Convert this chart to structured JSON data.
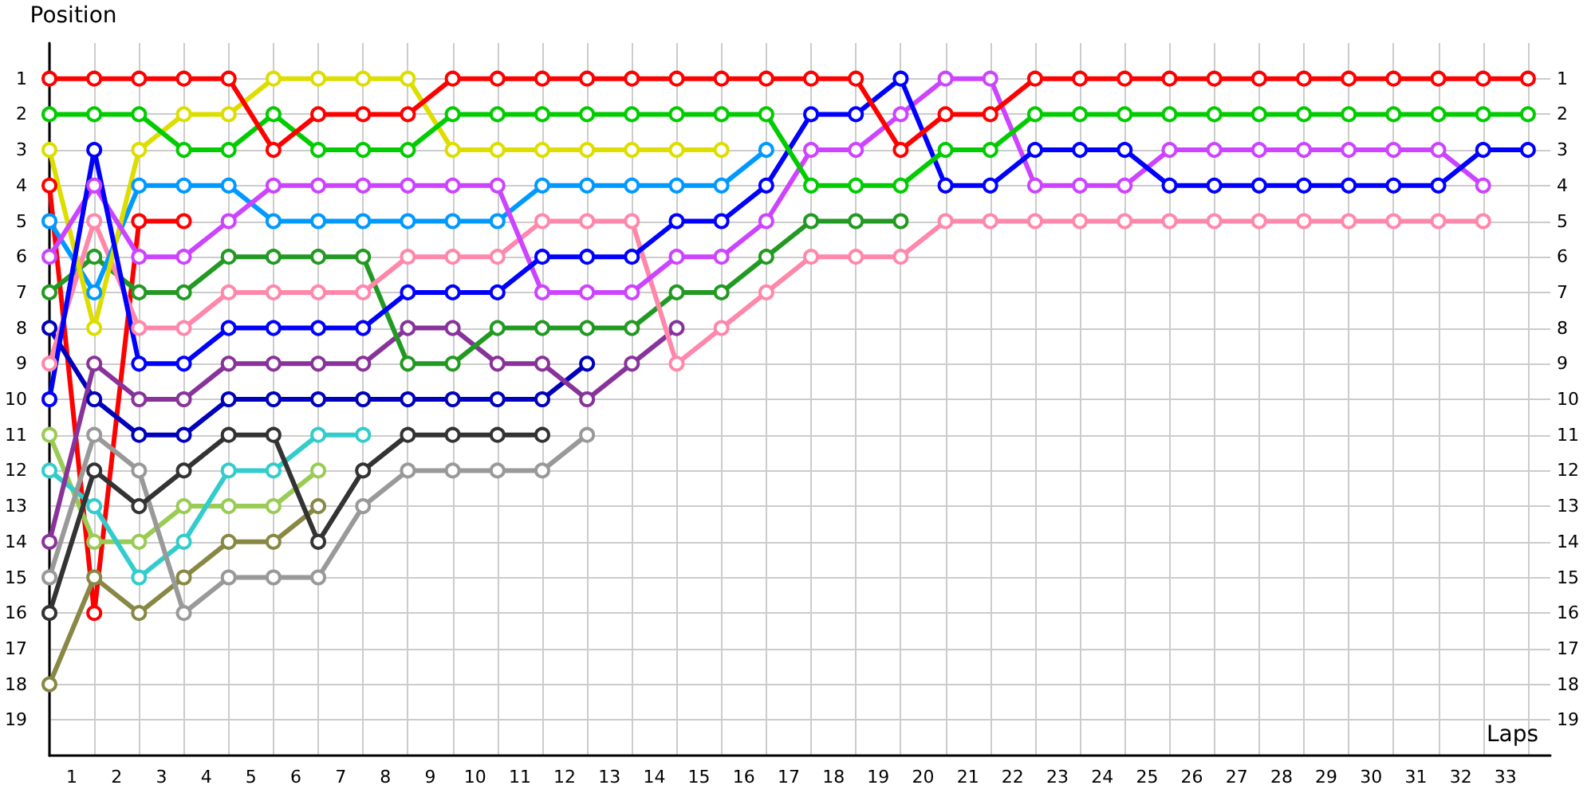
{
  "chart_data": {
    "type": "line",
    "xlabel": "Laps",
    "ylabel": "Position",
    "marker": "circle",
    "line_style": "solid",
    "grid": true,
    "x": [
      0,
      1,
      2,
      3,
      4,
      5,
      6,
      7,
      8,
      9,
      10,
      11,
      12,
      13,
      14,
      15,
      16,
      17,
      18,
      19,
      20,
      21,
      22,
      23,
      24,
      25,
      26,
      27,
      28,
      29,
      30,
      31,
      32,
      33
    ],
    "xlim": [
      0,
      33.5
    ],
    "xticks": [
      {
        "value": 0,
        "label": null
      },
      {
        "value": 1,
        "label": null
      },
      {
        "value": 2,
        "label": null
      },
      {
        "value": 3,
        "label": null
      },
      {
        "value": 4,
        "label": null
      },
      {
        "value": 5,
        "label": null
      },
      {
        "value": 6,
        "label": null
      },
      {
        "value": 7,
        "label": null
      },
      {
        "value": 8,
        "label": null
      },
      {
        "value": 9,
        "label": null
      },
      {
        "value": 10,
        "label": null
      },
      {
        "value": 11,
        "label": null
      },
      {
        "value": 12,
        "label": null
      },
      {
        "value": 13,
        "label": null
      },
      {
        "value": 14,
        "label": null
      },
      {
        "value": 15,
        "label": null
      },
      {
        "value": 16,
        "label": null
      },
      {
        "value": 17,
        "label": null
      },
      {
        "value": 18,
        "label": null
      },
      {
        "value": 19,
        "label": null
      },
      {
        "value": 20,
        "label": null
      },
      {
        "value": 21,
        "label": null
      },
      {
        "value": 22,
        "label": null
      },
      {
        "value": 23,
        "label": null
      },
      {
        "value": 24,
        "label": null
      },
      {
        "value": 25,
        "label": null
      },
      {
        "value": 26,
        "label": null
      },
      {
        "value": 27,
        "label": null
      },
      {
        "value": 28,
        "label": null
      },
      {
        "value": 29,
        "label": null
      },
      {
        "value": 30,
        "label": null
      },
      {
        "value": 31,
        "label": null
      },
      {
        "value": 32,
        "label": null
      },
      {
        "value": 33,
        "label": null
      },
      {
        "value": 0.5,
        "label": "1"
      },
      {
        "value": 1.5,
        "label": "2"
      },
      {
        "value": 2.5,
        "label": "3"
      },
      {
        "value": 3.5,
        "label": "4"
      },
      {
        "value": 4.5,
        "label": "5"
      },
      {
        "value": 5.5,
        "label": "6"
      },
      {
        "value": 6.5,
        "label": "7"
      },
      {
        "value": 7.5,
        "label": "8"
      },
      {
        "value": 8.5,
        "label": "9"
      },
      {
        "value": 9.5,
        "label": "10"
      },
      {
        "value": 10.5,
        "label": "11"
      },
      {
        "value": 11.5,
        "label": "12"
      },
      {
        "value": 12.5,
        "label": "13"
      },
      {
        "value": 13.5,
        "label": "14"
      },
      {
        "value": 14.5,
        "label": "15"
      },
      {
        "value": 15.5,
        "label": "16"
      },
      {
        "value": 16.5,
        "label": "17"
      },
      {
        "value": 17.5,
        "label": "18"
      },
      {
        "value": 18.5,
        "label": "19"
      },
      {
        "value": 19.5,
        "label": "20"
      },
      {
        "value": 20.5,
        "label": "21"
      },
      {
        "value": 21.5,
        "label": "22"
      },
      {
        "value": 22.5,
        "label": "23"
      },
      {
        "value": 23.5,
        "label": "24"
      },
      {
        "value": 24.5,
        "label": "25"
      },
      {
        "value": 25.5,
        "label": "26"
      },
      {
        "value": 26.5,
        "label": "27"
      },
      {
        "value": 27.5,
        "label": "28"
      },
      {
        "value": 28.5,
        "label": "29"
      },
      {
        "value": 29.5,
        "label": "30"
      },
      {
        "value": 30.5,
        "label": "31"
      },
      {
        "value": 31.5,
        "label": "32"
      },
      {
        "value": 32.5,
        "label": "33"
      }
    ],
    "ylim": [
      20,
      0
    ],
    "yticks": [
      1,
      2,
      3,
      4,
      5,
      6,
      7,
      8,
      9,
      10,
      11,
      12,
      13,
      14,
      15,
      16,
      17,
      18,
      19
    ],
    "y2lim": [
      20,
      0
    ],
    "y2ticks": [
      1,
      2,
      3,
      4,
      5,
      6,
      7,
      8,
      9,
      10,
      11,
      12,
      13,
      14,
      15,
      16,
      17,
      18,
      19
    ],
    "series": [
      {
        "color": "#ff0000",
        "values": [
          4,
          16,
          5,
          5,
          null,
          null,
          null,
          null,
          null,
          null,
          null,
          null,
          null,
          null,
          null,
          null,
          null,
          null,
          null,
          null,
          null,
          null,
          null,
          null,
          null,
          null,
          null,
          null,
          null,
          null,
          null,
          null,
          null,
          null
        ]
      },
      {
        "color": "#888844",
        "values": [
          18,
          15,
          16,
          15,
          14,
          14,
          13,
          null,
          null,
          null,
          null,
          null,
          null,
          null,
          null,
          null,
          null,
          null,
          null,
          null,
          null,
          null,
          null,
          null,
          null,
          null,
          null,
          null,
          null,
          null,
          null,
          null,
          null,
          null
        ]
      },
      {
        "color": "#99cc55",
        "values": [
          11,
          14,
          14,
          13,
          13,
          13,
          12,
          null,
          null,
          null,
          null,
          null,
          null,
          null,
          null,
          null,
          null,
          null,
          null,
          null,
          null,
          null,
          null,
          null,
          null,
          null,
          null,
          null,
          null,
          null,
          null,
          null,
          null,
          null
        ]
      },
      {
        "color": "#33cccc",
        "values": [
          12,
          13,
          15,
          14,
          12,
          12,
          11,
          11,
          null,
          null,
          null,
          null,
          null,
          null,
          null,
          null,
          null,
          null,
          null,
          null,
          null,
          null,
          null,
          null,
          null,
          null,
          null,
          null,
          null,
          null,
          null,
          null,
          null,
          null
        ]
      },
      {
        "color": "#999999",
        "values": [
          15,
          11,
          12,
          16,
          15,
          15,
          15,
          13,
          12,
          12,
          12,
          12,
          11,
          null,
          null,
          null,
          null,
          null,
          null,
          null,
          null,
          null,
          null,
          null,
          null,
          null,
          null,
          null,
          null,
          null,
          null,
          null,
          null,
          null
        ]
      },
      {
        "color": "#333333",
        "values": [
          16,
          12,
          13,
          12,
          11,
          11,
          14,
          12,
          11,
          11,
          11,
          11,
          null,
          null,
          null,
          null,
          null,
          null,
          null,
          null,
          null,
          null,
          null,
          null,
          null,
          null,
          null,
          null,
          null,
          null,
          null,
          null,
          null,
          null
        ]
      },
      {
        "color": "#0000bb",
        "values": [
          8,
          10,
          11,
          11,
          10,
          10,
          10,
          10,
          10,
          10,
          10,
          10,
          9,
          null,
          null,
          null,
          null,
          null,
          null,
          null,
          null,
          null,
          null,
          null,
          null,
          null,
          null,
          null,
          null,
          null,
          null,
          null,
          null,
          null
        ]
      },
      {
        "color": "#883399",
        "values": [
          14,
          9,
          10,
          10,
          9,
          9,
          9,
          9,
          8,
          8,
          9,
          9,
          10,
          9,
          8,
          null,
          null,
          null,
          null,
          null,
          null,
          null,
          null,
          null,
          null,
          null,
          null,
          null,
          null,
          null,
          null,
          null,
          null,
          null
        ]
      },
      {
        "color": "#229922",
        "values": [
          7,
          6,
          7,
          7,
          6,
          6,
          6,
          6,
          9,
          9,
          8,
          8,
          8,
          8,
          7,
          7,
          6,
          5,
          5,
          5,
          null,
          null,
          null,
          null,
          null,
          null,
          null,
          null,
          null,
          null,
          null,
          null,
          null,
          null
        ]
      },
      {
        "color": "#ff88aa",
        "values": [
          9,
          5,
          8,
          8,
          7,
          7,
          7,
          7,
          6,
          6,
          6,
          5,
          5,
          5,
          9,
          8,
          7,
          6,
          6,
          6,
          5,
          5,
          5,
          5,
          5,
          5,
          5,
          5,
          5,
          5,
          5,
          5,
          5,
          null
        ]
      },
      {
        "color": "#0099ff",
        "values": [
          5,
          7,
          4,
          4,
          4,
          5,
          5,
          5,
          5,
          5,
          5,
          4,
          4,
          4,
          4,
          4,
          3,
          null,
          null,
          null,
          null,
          null,
          null,
          null,
          null,
          null,
          null,
          null,
          null,
          null,
          null,
          null,
          null,
          null
        ]
      },
      {
        "color": "#dddd00",
        "values": [
          3,
          8,
          3,
          2,
          2,
          1,
          1,
          1,
          1,
          3,
          3,
          3,
          3,
          3,
          3,
          3,
          null,
          null,
          null,
          null,
          null,
          null,
          null,
          null,
          null,
          null,
          null,
          null,
          null,
          null,
          null,
          null,
          null,
          null
        ]
      },
      {
        "color": "#cc44ff",
        "values": [
          6,
          4,
          6,
          6,
          5,
          4,
          4,
          4,
          4,
          4,
          4,
          7,
          7,
          7,
          6,
          6,
          5,
          3,
          3,
          2,
          1,
          1,
          4,
          4,
          4,
          3,
          3,
          3,
          3,
          3,
          3,
          3,
          4,
          null
        ]
      },
      {
        "color": "#0000ff",
        "values": [
          10,
          3,
          9,
          9,
          8,
          8,
          8,
          8,
          7,
          7,
          7,
          6,
          6,
          6,
          5,
          5,
          4,
          2,
          2,
          1,
          4,
          4,
          3,
          3,
          3,
          4,
          4,
          4,
          4,
          4,
          4,
          4,
          3,
          3
        ]
      },
      {
        "color": "#00cc00",
        "values": [
          2,
          2,
          2,
          3,
          3,
          2,
          3,
          3,
          3,
          2,
          2,
          2,
          2,
          2,
          2,
          2,
          2,
          4,
          4,
          4,
          3,
          3,
          2,
          2,
          2,
          2,
          2,
          2,
          2,
          2,
          2,
          2,
          2,
          2
        ]
      },
      {
        "color": "#ff0000",
        "values": [
          1,
          1,
          1,
          1,
          1,
          3,
          2,
          2,
          2,
          1,
          1,
          1,
          1,
          1,
          1,
          1,
          1,
          1,
          1,
          3,
          2,
          2,
          1,
          1,
          1,
          1,
          1,
          1,
          1,
          1,
          1,
          1,
          1,
          1
        ]
      }
    ]
  }
}
